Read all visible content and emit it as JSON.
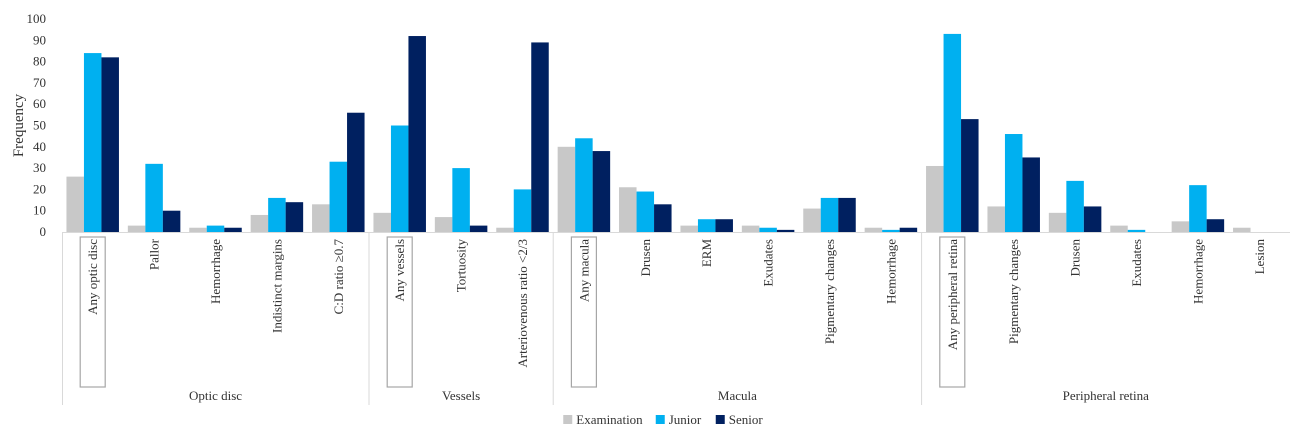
{
  "chart_data": {
    "type": "bar",
    "ylabel": "Frequency",
    "xlabel": "",
    "ylim": [
      0,
      100
    ],
    "yticks": [
      0,
      10,
      20,
      30,
      40,
      50,
      60,
      70,
      80,
      90,
      100
    ],
    "grid": false,
    "legend_position": "bottom-center",
    "groups": [
      {
        "name": "Optic disc",
        "categories": [
          "Any optic disc",
          "Pallor",
          "Hemorrhage",
          "Indistinct margins",
          "C:D ratio ≥0.7"
        ]
      },
      {
        "name": "Vessels",
        "categories": [
          "Any vessels",
          "Tortuosity",
          "Arteriovenous ratio <2/3"
        ]
      },
      {
        "name": "Macula",
        "categories": [
          "Any macula",
          "Drusen",
          "ERM",
          "Exudates",
          "Pigmentary changes",
          "Hemorrhage"
        ]
      },
      {
        "name": "Peripheral retina",
        "categories": [
          "Any peripheral retina",
          "Pigmentary changes",
          "Drusen",
          "Exudates",
          "Hemorrhage",
          "Lesion"
        ]
      }
    ],
    "boxed_categories": [
      "Any optic disc",
      "Any vessels",
      "Any macula",
      "Any peripheral retina"
    ],
    "series": [
      {
        "name": "Examination",
        "color": "#c8c8c8",
        "values": [
          26,
          3,
          2,
          8,
          13,
          9,
          7,
          2,
          40,
          21,
          3,
          3,
          11,
          2,
          31,
          12,
          9,
          3,
          5,
          2
        ]
      },
      {
        "name": "Junior",
        "color": "#00b0f0",
        "values": [
          84,
          32,
          3,
          16,
          33,
          50,
          30,
          20,
          44,
          19,
          6,
          2,
          16,
          1,
          93,
          46,
          24,
          1,
          22,
          0
        ]
      },
      {
        "name": "Senior",
        "color": "#002060",
        "values": [
          82,
          10,
          2,
          14,
          56,
          92,
          3,
          89,
          38,
          13,
          6,
          1,
          16,
          2,
          53,
          35,
          12,
          0,
          6,
          0
        ]
      }
    ]
  }
}
